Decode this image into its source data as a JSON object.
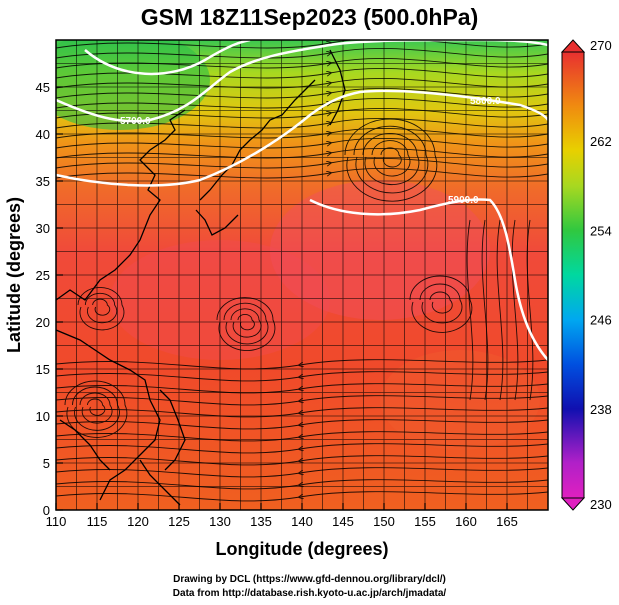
{
  "title": "GSM 18Z11Sep2023 (500.0hPa)",
  "x_axis": {
    "label": "Longitude (degrees)",
    "ticks": [
      "110",
      "115",
      "120",
      "125",
      "130",
      "135",
      "140",
      "145",
      "150",
      "155",
      "160",
      "165"
    ]
  },
  "y_axis": {
    "label": "Latitude  (degrees)",
    "ticks": [
      "0",
      "5",
      "10",
      "15",
      "20",
      "25",
      "30",
      "35",
      "40",
      "45"
    ]
  },
  "colorbar": {
    "ticks": [
      "230",
      "238",
      "246",
      "254",
      "262",
      "270"
    ],
    "colors": [
      "#e020c0",
      "#8020d0",
      "#1010b0",
      "#0050e0",
      "#00a0f0",
      "#00d8c0",
      "#20c040",
      "#80d020",
      "#d8d000",
      "#f09000",
      "#f05020",
      "#e83030"
    ]
  },
  "contour_labels": [
    "5700.0",
    "5800.0",
    "5900.0"
  ],
  "credits": {
    "line1": "Drawing by DCL (https://www.gfd-dennou.org/library/dcl/)",
    "line2": "Data from http://database.rish.kyoto-u.ac.jp/arch/jmadata/"
  },
  "map_data": {
    "lon_range": [
      110,
      170
    ],
    "lat_range": [
      0,
      50
    ],
    "field": "temperature (K) with geopotential height contours and streamlines"
  }
}
